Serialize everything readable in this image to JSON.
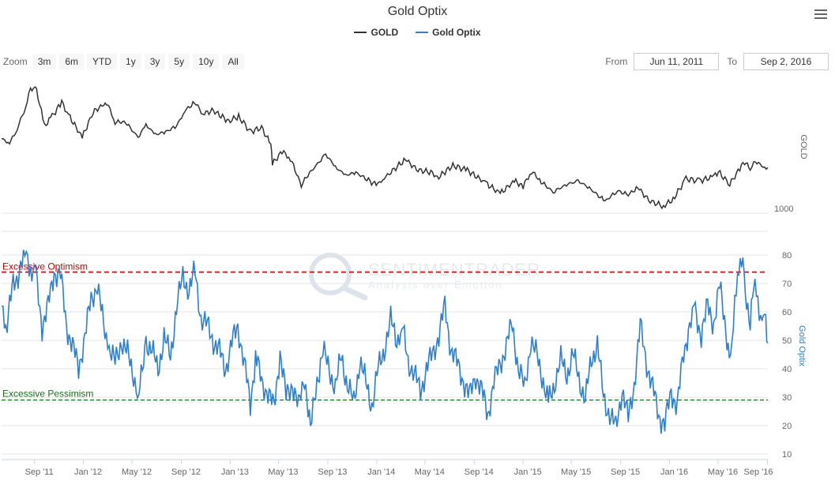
{
  "header": {
    "title": "Gold Optix",
    "legend": [
      {
        "name": "GOLD",
        "color": "#333333"
      },
      {
        "name": "Gold Optix",
        "color": "#2d7fd1"
      }
    ]
  },
  "toolbar": {
    "zoom_label": "Zoom",
    "zoom_buttons": [
      "3m",
      "6m",
      "YTD",
      "1y",
      "3y",
      "5y",
      "10y",
      "All"
    ],
    "from_label": "From",
    "from_value": "Jun 11, 2011",
    "to_label": "To",
    "to_value": "Sep 2, 2016"
  },
  "watermark": {
    "brand": "SENTIMENTRADER",
    "tagline": "Analysis over Emotion"
  },
  "chart_data": [
    {
      "type": "line",
      "series_name": "GOLD",
      "ylabel": "GOLD",
      "color": "#333333",
      "y_ticks": [
        1000
      ],
      "ylim": [
        800,
        2000
      ],
      "x_range": [
        "2011-06-11",
        "2016-09-02"
      ],
      "points": [
        [
          "2011-06-11",
          1530
        ],
        [
          "2011-07-01",
          1500
        ],
        [
          "2011-07-20",
          1600
        ],
        [
          "2011-08-10",
          1760
        ],
        [
          "2011-08-22",
          1890
        ],
        [
          "2011-09-06",
          1880
        ],
        [
          "2011-09-26",
          1620
        ],
        [
          "2011-10-15",
          1690
        ],
        [
          "2011-11-08",
          1790
        ],
        [
          "2011-11-25",
          1700
        ],
        [
          "2011-12-29",
          1540
        ],
        [
          "2012-01-25",
          1720
        ],
        [
          "2012-02-28",
          1790
        ],
        [
          "2012-03-20",
          1650
        ],
        [
          "2012-04-15",
          1650
        ],
        [
          "2012-05-16",
          1540
        ],
        [
          "2012-06-05",
          1630
        ],
        [
          "2012-06-28",
          1560
        ],
        [
          "2012-07-24",
          1580
        ],
        [
          "2012-08-20",
          1620
        ],
        [
          "2012-09-10",
          1730
        ],
        [
          "2012-10-04",
          1790
        ],
        [
          "2012-10-25",
          1710
        ],
        [
          "2012-11-20",
          1730
        ],
        [
          "2012-12-28",
          1655
        ],
        [
          "2013-01-22",
          1690
        ],
        [
          "2013-02-20",
          1580
        ],
        [
          "2013-03-20",
          1610
        ],
        [
          "2013-04-12",
          1490
        ],
        [
          "2013-04-16",
          1350
        ],
        [
          "2013-05-10",
          1440
        ],
        [
          "2013-05-31",
          1390
        ],
        [
          "2013-06-27",
          1200
        ],
        [
          "2013-07-10",
          1260
        ],
        [
          "2013-08-27",
          1420
        ],
        [
          "2013-09-20",
          1330
        ],
        [
          "2013-10-15",
          1270
        ],
        [
          "2013-11-10",
          1290
        ],
        [
          "2013-12-31",
          1200
        ],
        [
          "2014-01-20",
          1250
        ],
        [
          "2014-03-14",
          1385
        ],
        [
          "2014-04-10",
          1310
        ],
        [
          "2014-05-20",
          1290
        ],
        [
          "2014-06-01",
          1250
        ],
        [
          "2014-07-10",
          1340
        ],
        [
          "2014-08-15",
          1305
        ],
        [
          "2014-09-30",
          1215
        ],
        [
          "2014-11-05",
          1140
        ],
        [
          "2014-12-10",
          1230
        ],
        [
          "2015-01-01",
          1190
        ],
        [
          "2015-01-22",
          1300
        ],
        [
          "2015-02-15",
          1225
        ],
        [
          "2015-03-17",
          1150
        ],
        [
          "2015-04-15",
          1200
        ],
        [
          "2015-05-18",
          1230
        ],
        [
          "2015-06-15",
          1180
        ],
        [
          "2015-07-24",
          1085
        ],
        [
          "2015-08-24",
          1160
        ],
        [
          "2015-09-20",
          1130
        ],
        [
          "2015-10-14",
          1185
        ],
        [
          "2015-11-10",
          1090
        ],
        [
          "2015-12-17",
          1050
        ],
        [
          "2016-01-10",
          1100
        ],
        [
          "2016-02-11",
          1245
        ],
        [
          "2016-03-15",
          1230
        ],
        [
          "2016-04-20",
          1260
        ],
        [
          "2016-05-02",
          1295
        ],
        [
          "2016-05-30",
          1205
        ],
        [
          "2016-06-24",
          1320
        ],
        [
          "2016-07-06",
          1365
        ],
        [
          "2016-07-20",
          1320
        ],
        [
          "2016-08-02",
          1370
        ],
        [
          "2016-08-25",
          1325
        ],
        [
          "2016-09-02",
          1325
        ]
      ]
    },
    {
      "type": "line",
      "series_name": "Gold Optix",
      "ylabel": "Gold Optix",
      "color": "#2d7fd1",
      "y_ticks": [
        10,
        20,
        30,
        40,
        50,
        60,
        70,
        80
      ],
      "ylim": [
        10,
        80
      ],
      "x_range": [
        "2011-06-11",
        "2016-09-02"
      ],
      "x_tick_labels": [
        "Sep '11",
        "Jan '12",
        "May '12",
        "Sep '12",
        "Jan '13",
        "May '13",
        "Sep '13",
        "Jan '14",
        "May '14",
        "Sep '14",
        "Jan '15",
        "May '15",
        "Sep '15",
        "Jan '16",
        "May '16",
        "Sep '16"
      ],
      "x_tick_dates": [
        "2011-09-01",
        "2012-01-01",
        "2012-05-01",
        "2012-09-01",
        "2013-01-01",
        "2013-05-01",
        "2013-09-01",
        "2014-01-01",
        "2014-05-01",
        "2014-09-01",
        "2015-01-01",
        "2015-05-01",
        "2015-09-01",
        "2016-01-01",
        "2016-05-01",
        "2016-09-01"
      ],
      "thresholds": [
        {
          "label": "Excessive Optimism",
          "value": 74,
          "color": "#cc0000"
        },
        {
          "label": "Excessive Pessimism",
          "value": 29,
          "color": "#1a6e1a"
        }
      ],
      "points": [
        [
          "2011-06-11",
          62
        ],
        [
          "2011-06-25",
          56
        ],
        [
          "2011-07-10",
          70
        ],
        [
          "2011-07-25",
          74
        ],
        [
          "2011-08-08",
          81
        ],
        [
          "2011-08-22",
          76
        ],
        [
          "2011-09-05",
          72
        ],
        [
          "2011-09-20",
          55
        ],
        [
          "2011-10-05",
          62
        ],
        [
          "2011-10-20",
          74
        ],
        [
          "2011-11-05",
          73
        ],
        [
          "2011-11-20",
          55
        ],
        [
          "2011-12-05",
          48
        ],
        [
          "2011-12-20",
          40
        ],
        [
          "2012-01-05",
          52
        ],
        [
          "2012-01-20",
          64
        ],
        [
          "2012-02-05",
          70
        ],
        [
          "2012-02-20",
          55
        ],
        [
          "2012-03-05",
          47
        ],
        [
          "2012-03-20",
          42
        ],
        [
          "2012-04-05",
          50
        ],
        [
          "2012-04-20",
          45
        ],
        [
          "2012-05-05",
          38
        ],
        [
          "2012-05-18",
          30
        ],
        [
          "2012-06-05",
          50
        ],
        [
          "2012-06-20",
          46
        ],
        [
          "2012-07-05",
          40
        ],
        [
          "2012-07-20",
          51
        ],
        [
          "2012-08-05",
          44
        ],
        [
          "2012-08-20",
          62
        ],
        [
          "2012-09-05",
          72
        ],
        [
          "2012-09-20",
          68
        ],
        [
          "2012-10-05",
          74
        ],
        [
          "2012-10-20",
          58
        ],
        [
          "2012-11-05",
          55
        ],
        [
          "2012-11-20",
          50
        ],
        [
          "2012-12-05",
          46
        ],
        [
          "2012-12-20",
          40
        ],
        [
          "2013-01-05",
          49
        ],
        [
          "2013-01-20",
          55
        ],
        [
          "2013-02-05",
          42
        ],
        [
          "2013-02-20",
          27
        ],
        [
          "2013-03-05",
          45
        ],
        [
          "2013-03-20",
          35
        ],
        [
          "2013-04-05",
          32
        ],
        [
          "2013-04-20",
          26
        ],
        [
          "2013-05-05",
          46
        ],
        [
          "2013-05-20",
          30
        ],
        [
          "2013-06-05",
          35
        ],
        [
          "2013-06-20",
          26
        ],
        [
          "2013-07-05",
          38
        ],
        [
          "2013-07-20",
          18
        ],
        [
          "2013-08-05",
          36
        ],
        [
          "2013-08-20",
          46
        ],
        [
          "2013-09-05",
          40
        ],
        [
          "2013-09-20",
          33
        ],
        [
          "2013-10-05",
          45
        ],
        [
          "2013-10-20",
          34
        ],
        [
          "2013-11-05",
          28
        ],
        [
          "2013-11-20",
          43
        ],
        [
          "2013-12-05",
          35
        ],
        [
          "2013-12-20",
          27
        ],
        [
          "2014-01-05",
          40
        ],
        [
          "2014-01-20",
          47
        ],
        [
          "2014-02-05",
          57
        ],
        [
          "2014-02-20",
          50
        ],
        [
          "2014-03-05",
          55
        ],
        [
          "2014-03-20",
          43
        ],
        [
          "2014-04-05",
          38
        ],
        [
          "2014-04-20",
          32
        ],
        [
          "2014-05-05",
          40
        ],
        [
          "2014-05-20",
          45
        ],
        [
          "2014-06-05",
          52
        ],
        [
          "2014-06-20",
          62
        ],
        [
          "2014-07-05",
          47
        ],
        [
          "2014-07-20",
          42
        ],
        [
          "2014-08-05",
          36
        ],
        [
          "2014-08-20",
          30
        ],
        [
          "2014-09-05",
          38
        ],
        [
          "2014-09-20",
          32
        ],
        [
          "2014-10-05",
          24
        ],
        [
          "2014-10-20",
          35
        ],
        [
          "2014-11-05",
          42
        ],
        [
          "2014-11-20",
          48
        ],
        [
          "2014-12-05",
          56
        ],
        [
          "2014-12-20",
          40
        ],
        [
          "2015-01-05",
          33
        ],
        [
          "2015-01-20",
          50
        ],
        [
          "2015-02-05",
          44
        ],
        [
          "2015-02-20",
          36
        ],
        [
          "2015-03-05",
          28
        ],
        [
          "2015-03-20",
          35
        ],
        [
          "2015-04-05",
          43
        ],
        [
          "2015-04-20",
          38
        ],
        [
          "2015-05-05",
          45
        ],
        [
          "2015-05-20",
          37
        ],
        [
          "2015-06-05",
          29
        ],
        [
          "2015-06-20",
          43
        ],
        [
          "2015-07-05",
          49
        ],
        [
          "2015-07-20",
          30
        ],
        [
          "2015-08-05",
          24
        ],
        [
          "2015-08-20",
          19
        ],
        [
          "2015-09-05",
          33
        ],
        [
          "2015-09-20",
          22
        ],
        [
          "2015-10-05",
          35
        ],
        [
          "2015-10-20",
          55
        ],
        [
          "2015-11-05",
          42
        ],
        [
          "2015-11-20",
          33
        ],
        [
          "2015-12-05",
          24
        ],
        [
          "2015-12-20",
          20
        ],
        [
          "2016-01-05",
          32
        ],
        [
          "2016-01-20",
          27
        ],
        [
          "2016-02-05",
          45
        ],
        [
          "2016-02-20",
          56
        ],
        [
          "2016-03-05",
          60
        ],
        [
          "2016-03-20",
          52
        ],
        [
          "2016-04-05",
          62
        ],
        [
          "2016-04-20",
          56
        ],
        [
          "2016-05-05",
          69
        ],
        [
          "2016-05-20",
          55
        ],
        [
          "2016-06-01",
          40
        ],
        [
          "2016-06-15",
          70
        ],
        [
          "2016-06-25",
          78
        ],
        [
          "2016-07-05",
          72
        ],
        [
          "2016-07-20",
          55
        ],
        [
          "2016-08-01",
          73
        ],
        [
          "2016-08-15",
          56
        ],
        [
          "2016-08-25",
          60
        ],
        [
          "2016-09-02",
          49
        ]
      ]
    }
  ]
}
